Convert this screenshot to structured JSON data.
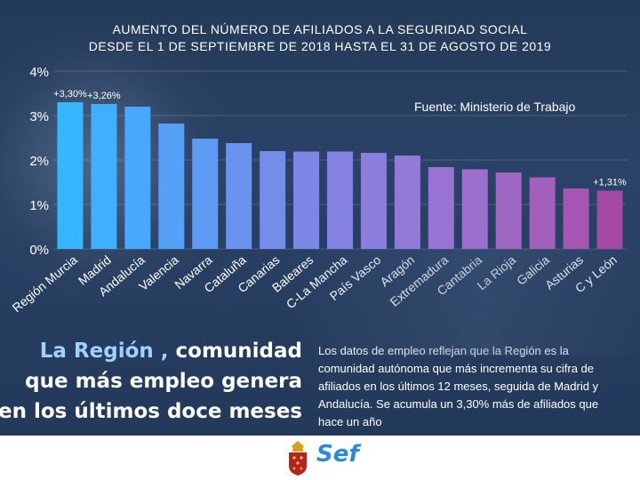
{
  "header": {
    "title_line1": "AUMENTO DEL NÚMERO DE AFILIADOS A LA SEGURIDAD SOCIAL",
    "title_line2": "DESDE EL 1 DE SEPTIEMBRE DE 2018 HASTA EL 31 DE AGOSTO DE 2019"
  },
  "source": "Fuente: Ministerio de Trabajo",
  "chart_data": {
    "type": "bar",
    "title": "AUMENTO DEL NÚMERO DE AFILIADOS A LA SEGURIDAD SOCIAL",
    "subtitle": "DESDE EL 1 DE SEPTIEMBRE DE 2018 HASTA EL 31 DE AGOSTO DE 2019",
    "xlabel": "",
    "ylabel": "",
    "ylim": [
      0,
      4
    ],
    "yticks": [
      0,
      1,
      2,
      3,
      4
    ],
    "ytick_labels": [
      "0%",
      "1%",
      "2%",
      "3%",
      "4%"
    ],
    "categories": [
      "Región Murcia",
      "Madrid",
      "Andalucía",
      "Valencia",
      "Navarra",
      "Cataluña",
      "Canarias",
      "Baleares",
      "C-La Mancha",
      "País Vasco",
      "Aragón",
      "Extremadura",
      "Cantabria",
      "La Rioja",
      "Galicia",
      "Asturias",
      "C y León"
    ],
    "values": [
      3.3,
      3.26,
      3.2,
      2.82,
      2.48,
      2.38,
      2.2,
      2.19,
      2.19,
      2.16,
      2.1,
      1.84,
      1.79,
      1.72,
      1.61,
      1.36,
      1.31
    ],
    "data_labels": {
      "0": "+3,30%",
      "1": "+3,26%",
      "16": "+1,31%"
    },
    "colors": [
      "#37b6ff",
      "#3fb0ff",
      "#48a9fb",
      "#55a1f7",
      "#5f9af4",
      "#6a93f0",
      "#748deb",
      "#7d88e6",
      "#8583e2",
      "#8c7edd",
      "#927ad9",
      "#9874d2",
      "#9c6fcc",
      "#a068c5",
      "#a35fbc",
      "#a456b2",
      "#a44aa6"
    ]
  },
  "headline": {
    "line1_highlight": "La Región ,",
    "line1_rest": " comunidad",
    "line2": "que más empleo genera",
    "line3": "en los últimos doce meses"
  },
  "description": "Los datos de empleo reflejan que la Región es la comunidad autónoma que más incrementa su cifra de afiliados en los últimos 12 meses, seguida de Madrid y Andalucía. Se acumula un 3,30% más de afiliados que hace un año",
  "footer": {
    "brand": "Sef",
    "crest_color": "#b5241f"
  }
}
